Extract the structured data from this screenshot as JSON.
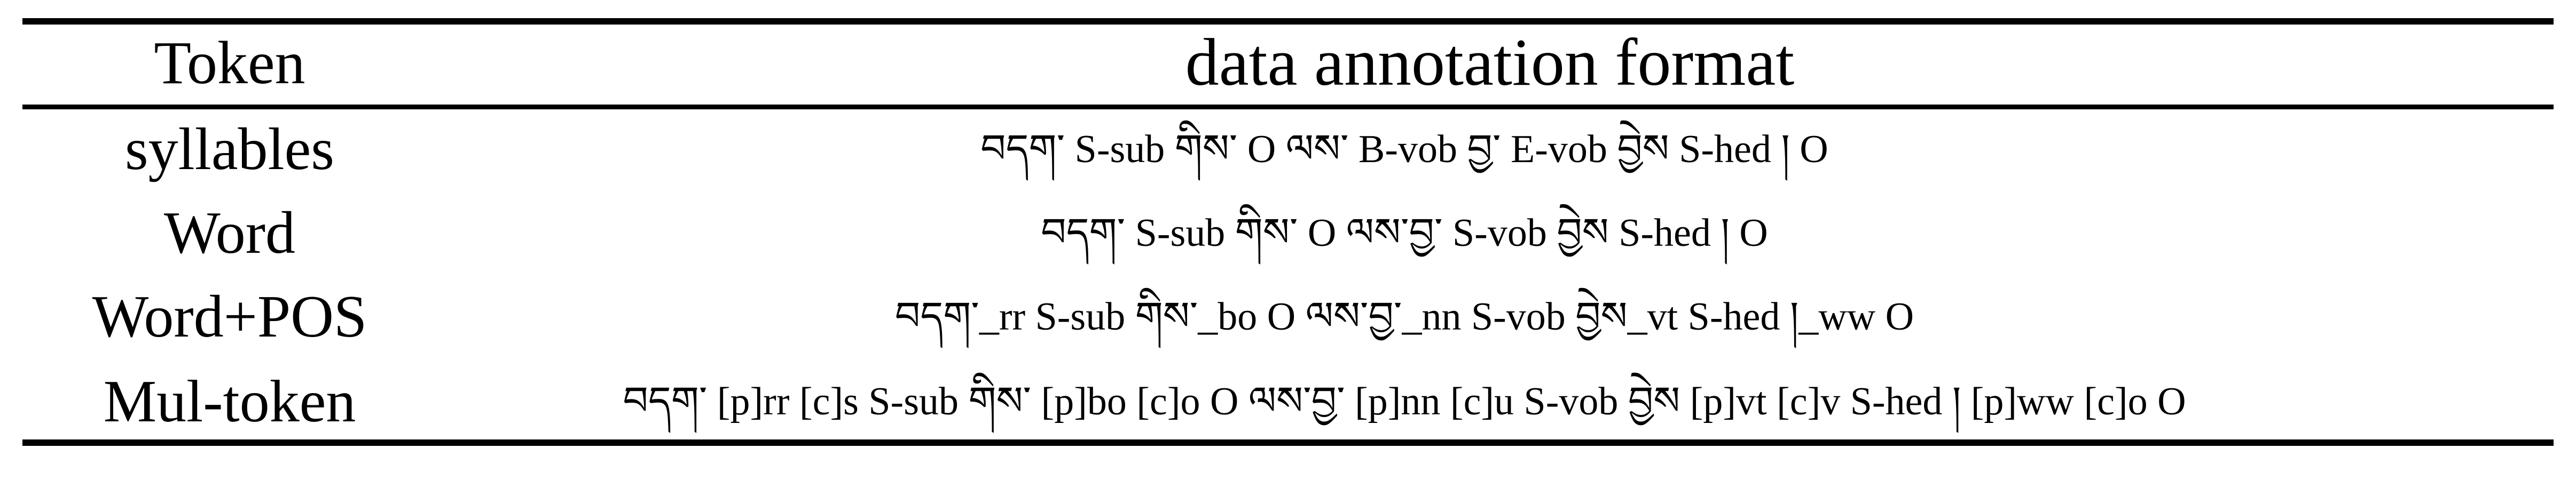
{
  "table": {
    "headers": {
      "token": "Token",
      "format": "data annotation format"
    },
    "rows": [
      {
        "token": "syllables",
        "format": "བདག་ S-sub    གིས་ O    ལས་ B-vob    བྱ་ E-vob    བྱེས S-hed    ། O"
      },
      {
        "token": "Word",
        "format": "བདག་ S-sub    གིས་ O    ལས་བྱ་ S-vob    བྱེས S-hed    ། O"
      },
      {
        "token": "Word+POS",
        "format": "བདག་_rr S-sub    གིས་_bo O    ལས་བྱ་_nn S-vob    བྱེས_vt S-hed    །_ww O"
      },
      {
        "token": "Mul-token",
        "format": "བདག་ [p]rr [c]s S-sub  གིས་ [p]bo [c]o O  ལས་བྱ་ [p]nn [c]u S-vob  བྱེས [p]vt [c]v S-hed  ། [p]ww [c]o O"
      }
    ]
  }
}
